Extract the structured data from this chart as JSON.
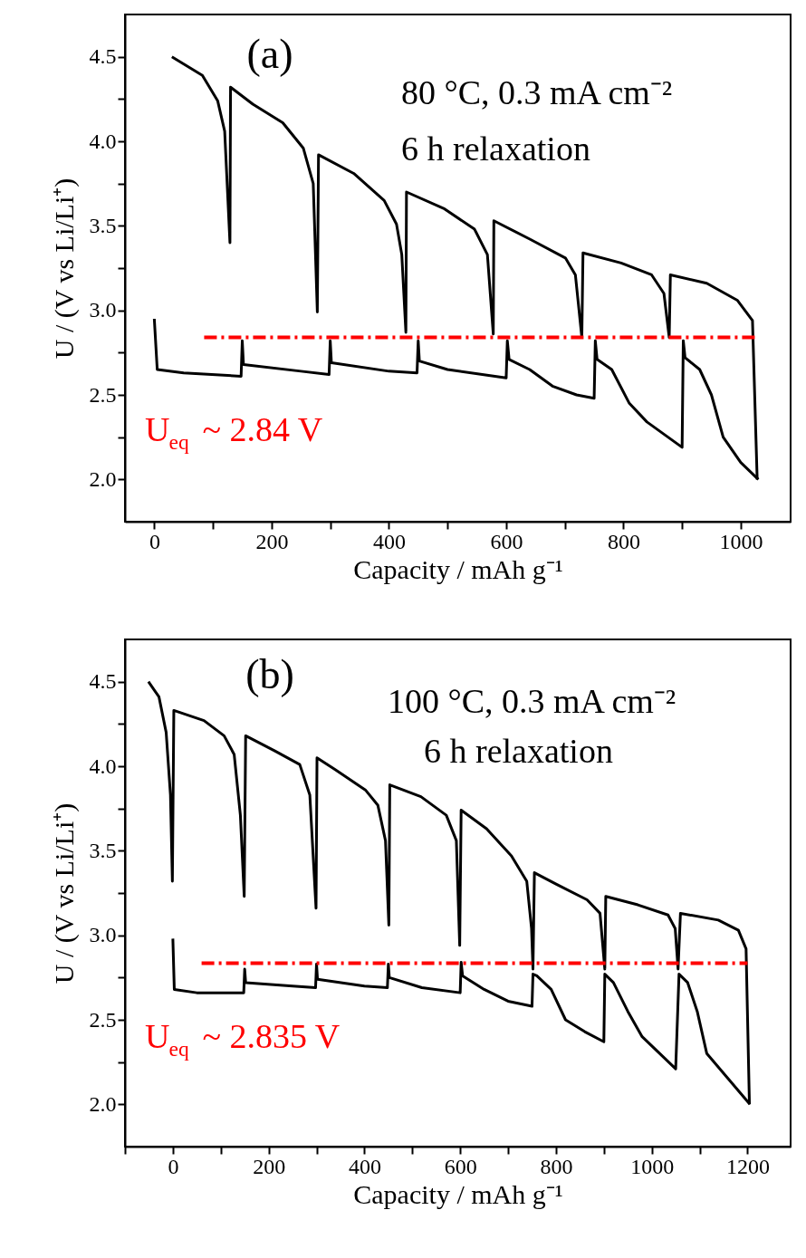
{
  "chart_data": [
    {
      "type": "line",
      "xlabel": "Capacity / mAh g⁻¹",
      "ylabel": "U / (V vs Li/Li⁺)",
      "xlim": [
        -50,
        1085
      ],
      "ylim": [
        1.75,
        4.75
      ],
      "xticks": [
        0,
        {
          "value": 100,
          "label": null
        },
        200,
        {
          "value": 300,
          "label": null
        },
        400,
        {
          "value": 500,
          "label": null
        },
        600,
        {
          "value": 700,
          "label": null
        },
        800,
        {
          "value": 900,
          "label": null
        },
        1000
      ],
      "yticks": [
        {
          "value": 2,
          "label": "2.0"
        },
        {
          "value": 2.25,
          "label": null
        },
        2.5,
        {
          "value": 2.75,
          "label": null
        },
        {
          "value": 3,
          "label": "3.0"
        },
        {
          "value": 3.25,
          "label": null
        },
        3.5,
        {
          "value": 3.75,
          "label": null
        },
        {
          "value": 4,
          "label": "4.0"
        },
        {
          "value": 4.25,
          "label": null
        },
        4.5
      ],
      "grid": false,
      "marker": "none",
      "line_style": "solid",
      "annotations": [
        "(a)",
        "80 °C, 0.3 mA cm⁻²",
        "6 h relaxation",
        "U$_{eq}$ ~ 2.84 V"
      ],
      "series": [
        {
          "color": "#000000",
          "x": [
            30,
            82,
            108,
            120,
            129,
            130,
            168,
            219,
            254,
            271,
            278,
            280,
            340,
            392,
            413,
            422,
            429,
            430,
            495,
            546,
            568,
            578,
            579,
            641,
            701,
            718,
            729,
            731,
            796,
            848,
            869,
            878,
            880,
            942,
            994,
            1020,
            1028
          ],
          "values": [
            4.5,
            4.39,
            4.24,
            4.06,
            3.4,
            4.32,
            4.22,
            4.11,
            3.96,
            3.75,
            2.99,
            3.92,
            3.81,
            3.65,
            3.51,
            3.33,
            2.87,
            3.7,
            3.6,
            3.48,
            3.33,
            2.86,
            3.53,
            3.42,
            3.31,
            3.21,
            2.84,
            3.34,
            3.28,
            3.21,
            3.1,
            2.84,
            3.21,
            3.16,
            3.06,
            2.94,
            2.0
          ]
        },
        {
          "color": "#000000",
          "x": [
            0,
            5,
            50,
            148,
            150,
            152,
            250,
            298,
            300,
            302,
            400,
            448,
            450,
            452,
            500,
            600,
            602,
            605,
            640,
            680,
            720,
            750,
            752,
            755,
            780,
            810,
            840,
            900,
            902,
            905,
            930,
            950,
            970,
            1000,
            1030
          ],
          "values": [
            2.95,
            2.65,
            2.63,
            2.61,
            2.82,
            2.68,
            2.64,
            2.62,
            2.82,
            2.69,
            2.64,
            2.63,
            2.82,
            2.7,
            2.65,
            2.6,
            2.82,
            2.71,
            2.65,
            2.55,
            2.5,
            2.48,
            2.82,
            2.71,
            2.65,
            2.45,
            2.34,
            2.19,
            2.82,
            2.72,
            2.65,
            2.5,
            2.25,
            2.1,
            2.0
          ]
        },
        {
          "color": "#ff0000",
          "line_style": "dashed",
          "x": [
            85,
            1030
          ],
          "values": [
            2.84,
            2.84
          ]
        }
      ]
    },
    {
      "type": "line",
      "xlabel": "Capacity / mAh g⁻¹",
      "ylabel": "U / (V vs Li/Li⁺)",
      "xlim": [
        -100,
        1290
      ],
      "ylim": [
        1.75,
        4.75
      ],
      "xticks": [
        {
          "value": -100,
          "label": null
        },
        0,
        {
          "value": 100,
          "label": null
        },
        200,
        {
          "value": 300,
          "label": null
        },
        400,
        {
          "value": 500,
          "label": null
        },
        600,
        {
          "value": 700,
          "label": null
        },
        800,
        {
          "value": 900,
          "label": null
        },
        1000,
        {
          "value": 1100,
          "label": null
        },
        1200
      ],
      "yticks": [
        {
          "value": 2,
          "label": "2.0"
        },
        {
          "value": 2.25,
          "label": null
        },
        2.5,
        {
          "value": 2.75,
          "label": null
        },
        {
          "value": 3,
          "label": "3.0"
        },
        {
          "value": 3.25,
          "label": null
        },
        3.5,
        {
          "value": 3.75,
          "label": null
        },
        {
          "value": 4,
          "label": "4.0"
        },
        {
          "value": 4.25,
          "label": null
        },
        4.5
      ],
      "grid": false,
      "marker": "none",
      "line_style": "solid",
      "annotations": [
        "(b)",
        "100 °C, 0.3 mA cm⁻²",
        "6 h relaxation",
        "U$_{eq}$ ~ 2.835 V"
      ],
      "series": [
        {
          "color": "#000000",
          "x": [
            -51,
            -29,
            -14,
            -5,
            -1,
            2,
            65,
            107,
            128,
            141,
            149,
            152,
            213,
            265,
            286,
            299,
            301,
            339,
            402,
            428,
            444,
            451,
            453,
            518,
            571,
            592,
            599,
            602,
            655,
            707,
            739,
            749,
            752,
            755,
            802,
            865,
            892,
            902,
            904,
            971,
            1034,
            1049,
            1055,
            1060,
            1139,
            1181,
            1197,
            1204
          ],
          "values": [
            4.5,
            4.41,
            4.2,
            3.83,
            3.32,
            4.33,
            4.27,
            4.18,
            4.07,
            3.71,
            3.23,
            4.18,
            4.09,
            4.01,
            3.83,
            3.16,
            4.05,
            3.98,
            3.86,
            3.77,
            3.56,
            3.06,
            3.89,
            3.82,
            3.71,
            3.56,
            2.94,
            3.74,
            3.63,
            3.47,
            3.32,
            3.04,
            2.8,
            3.37,
            3.3,
            3.21,
            3.13,
            2.8,
            3.23,
            3.18,
            3.12,
            3.04,
            2.8,
            3.13,
            3.09,
            3.03,
            2.92,
            2.0
          ]
        },
        {
          "color": "#000000",
          "x": [
            0,
            3,
            50,
            148,
            150,
            152,
            250,
            298,
            300,
            302,
            400,
            448,
            450,
            452,
            520,
            600,
            602,
            605,
            650,
            700,
            750,
            752,
            760,
            790,
            820,
            860,
            900,
            902,
            920,
            950,
            980,
            1050,
            1057,
            1075,
            1095,
            1115,
            1160,
            1205
          ],
          "values": [
            2.98,
            2.68,
            2.66,
            2.66,
            2.8,
            2.72,
            2.7,
            2.69,
            2.83,
            2.74,
            2.7,
            2.69,
            2.83,
            2.75,
            2.69,
            2.66,
            2.84,
            2.76,
            2.68,
            2.61,
            2.58,
            2.77,
            2.76,
            2.68,
            2.5,
            2.43,
            2.37,
            2.77,
            2.72,
            2.55,
            2.4,
            2.21,
            2.77,
            2.72,
            2.55,
            2.3,
            2.15,
            2.0
          ]
        },
        {
          "color": "#ff0000",
          "line_style": "dashed",
          "x": [
            60,
            1200
          ],
          "values": [
            2.835,
            2.835
          ]
        }
      ]
    }
  ]
}
